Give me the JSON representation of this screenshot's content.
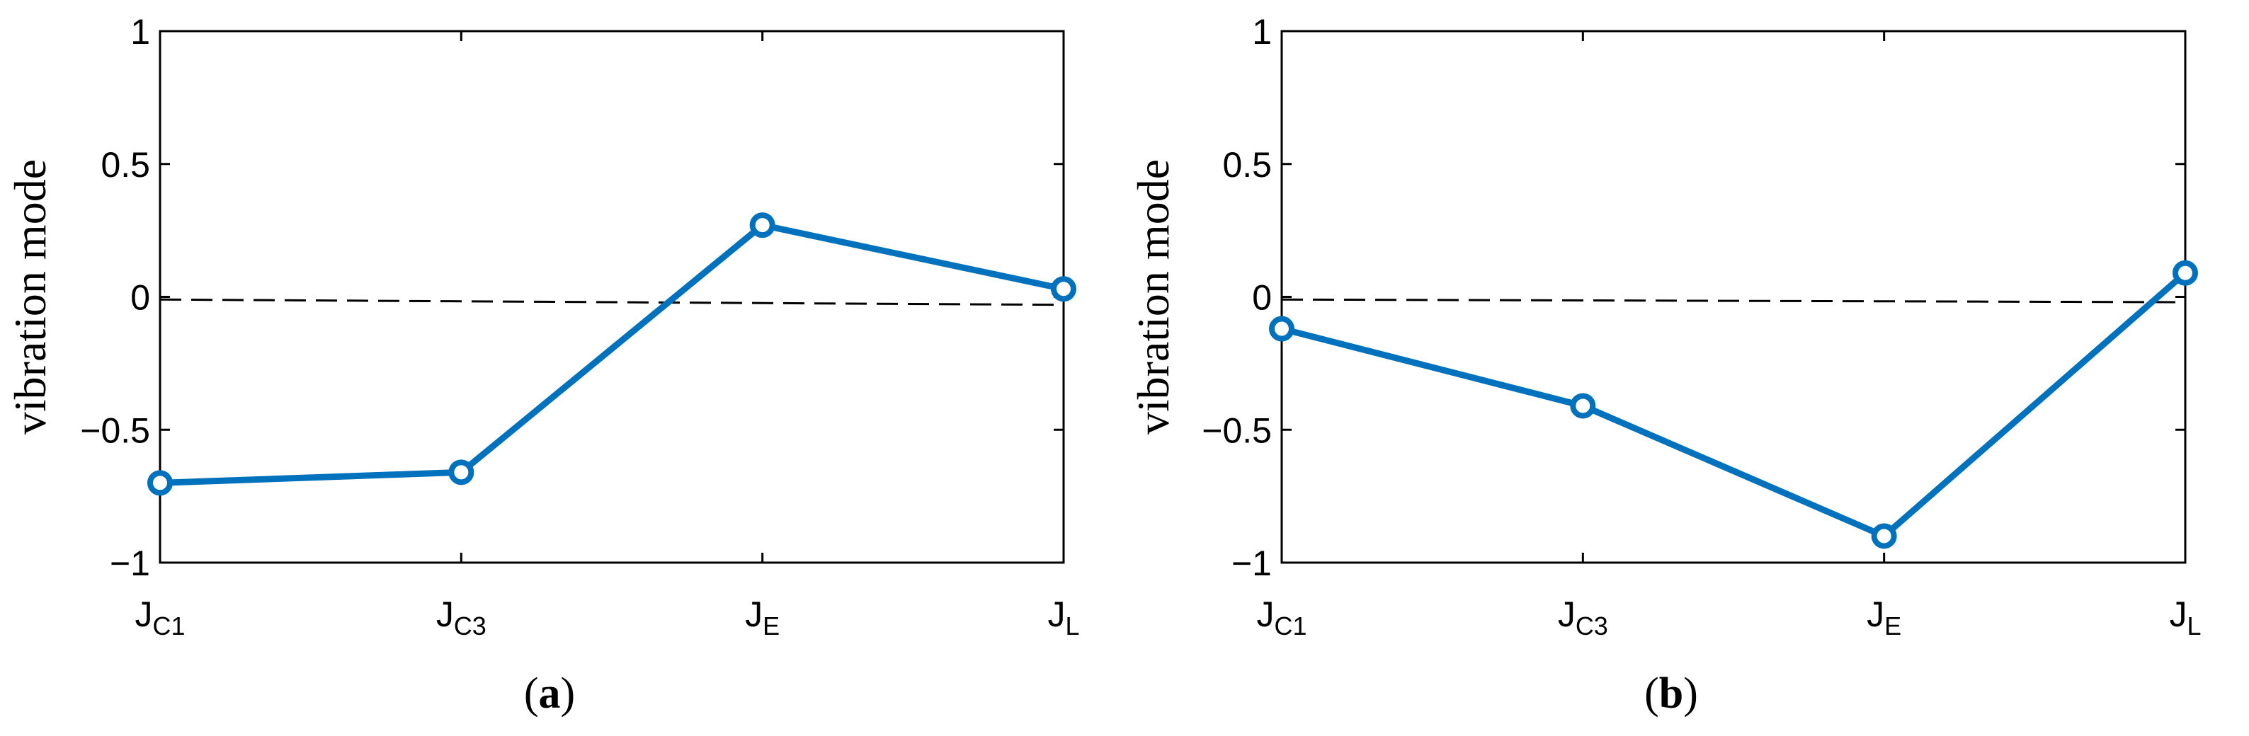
{
  "figure": {
    "panels": [
      {
        "caption_open": "(",
        "caption_letter": "a",
        "caption_close": ")"
      },
      {
        "caption_open": "(",
        "caption_letter": "b",
        "caption_close": ")"
      }
    ]
  },
  "chart_data": [
    {
      "type": "line",
      "title": "",
      "xlabel": "",
      "ylabel": "vibration mode",
      "ylim": [
        -1,
        1
      ],
      "yticks": [
        1,
        0.5,
        0,
        -0.5,
        -1
      ],
      "ytick_labels": [
        "1",
        "0.5",
        "0",
        "−0.5",
        "−1"
      ],
      "categories": [
        {
          "main": "J",
          "sub": "C1"
        },
        {
          "main": "J",
          "sub": "C3"
        },
        {
          "main": "J",
          "sub": "E"
        },
        {
          "main": "J",
          "sub": "L"
        }
      ],
      "series": [
        {
          "values": [
            -0.7,
            -0.66,
            0.27,
            0.03
          ],
          "color": "#0072BD",
          "marker": "circle"
        }
      ],
      "reference_line": {
        "y_start": -0.01,
        "y_end": -0.03,
        "style": "dashed",
        "color": "#000000"
      },
      "grid": false,
      "legend": "none"
    },
    {
      "type": "line",
      "title": "",
      "xlabel": "",
      "ylabel": "vibration mode",
      "ylim": [
        -1,
        1
      ],
      "yticks": [
        1,
        0.5,
        0,
        -0.5,
        -1
      ],
      "ytick_labels": [
        "1",
        "0.5",
        "0",
        "−0.5",
        "−1"
      ],
      "categories": [
        {
          "main": "J",
          "sub": "C1"
        },
        {
          "main": "J",
          "sub": "C3"
        },
        {
          "main": "J",
          "sub": "E"
        },
        {
          "main": "J",
          "sub": "L"
        }
      ],
      "series": [
        {
          "values": [
            -0.12,
            -0.41,
            -0.9,
            0.09
          ],
          "color": "#0072BD",
          "marker": "circle"
        }
      ],
      "reference_line": {
        "y_start": -0.01,
        "y_end": -0.02,
        "style": "dashed",
        "color": "#000000"
      },
      "grid": false,
      "legend": "none"
    }
  ]
}
